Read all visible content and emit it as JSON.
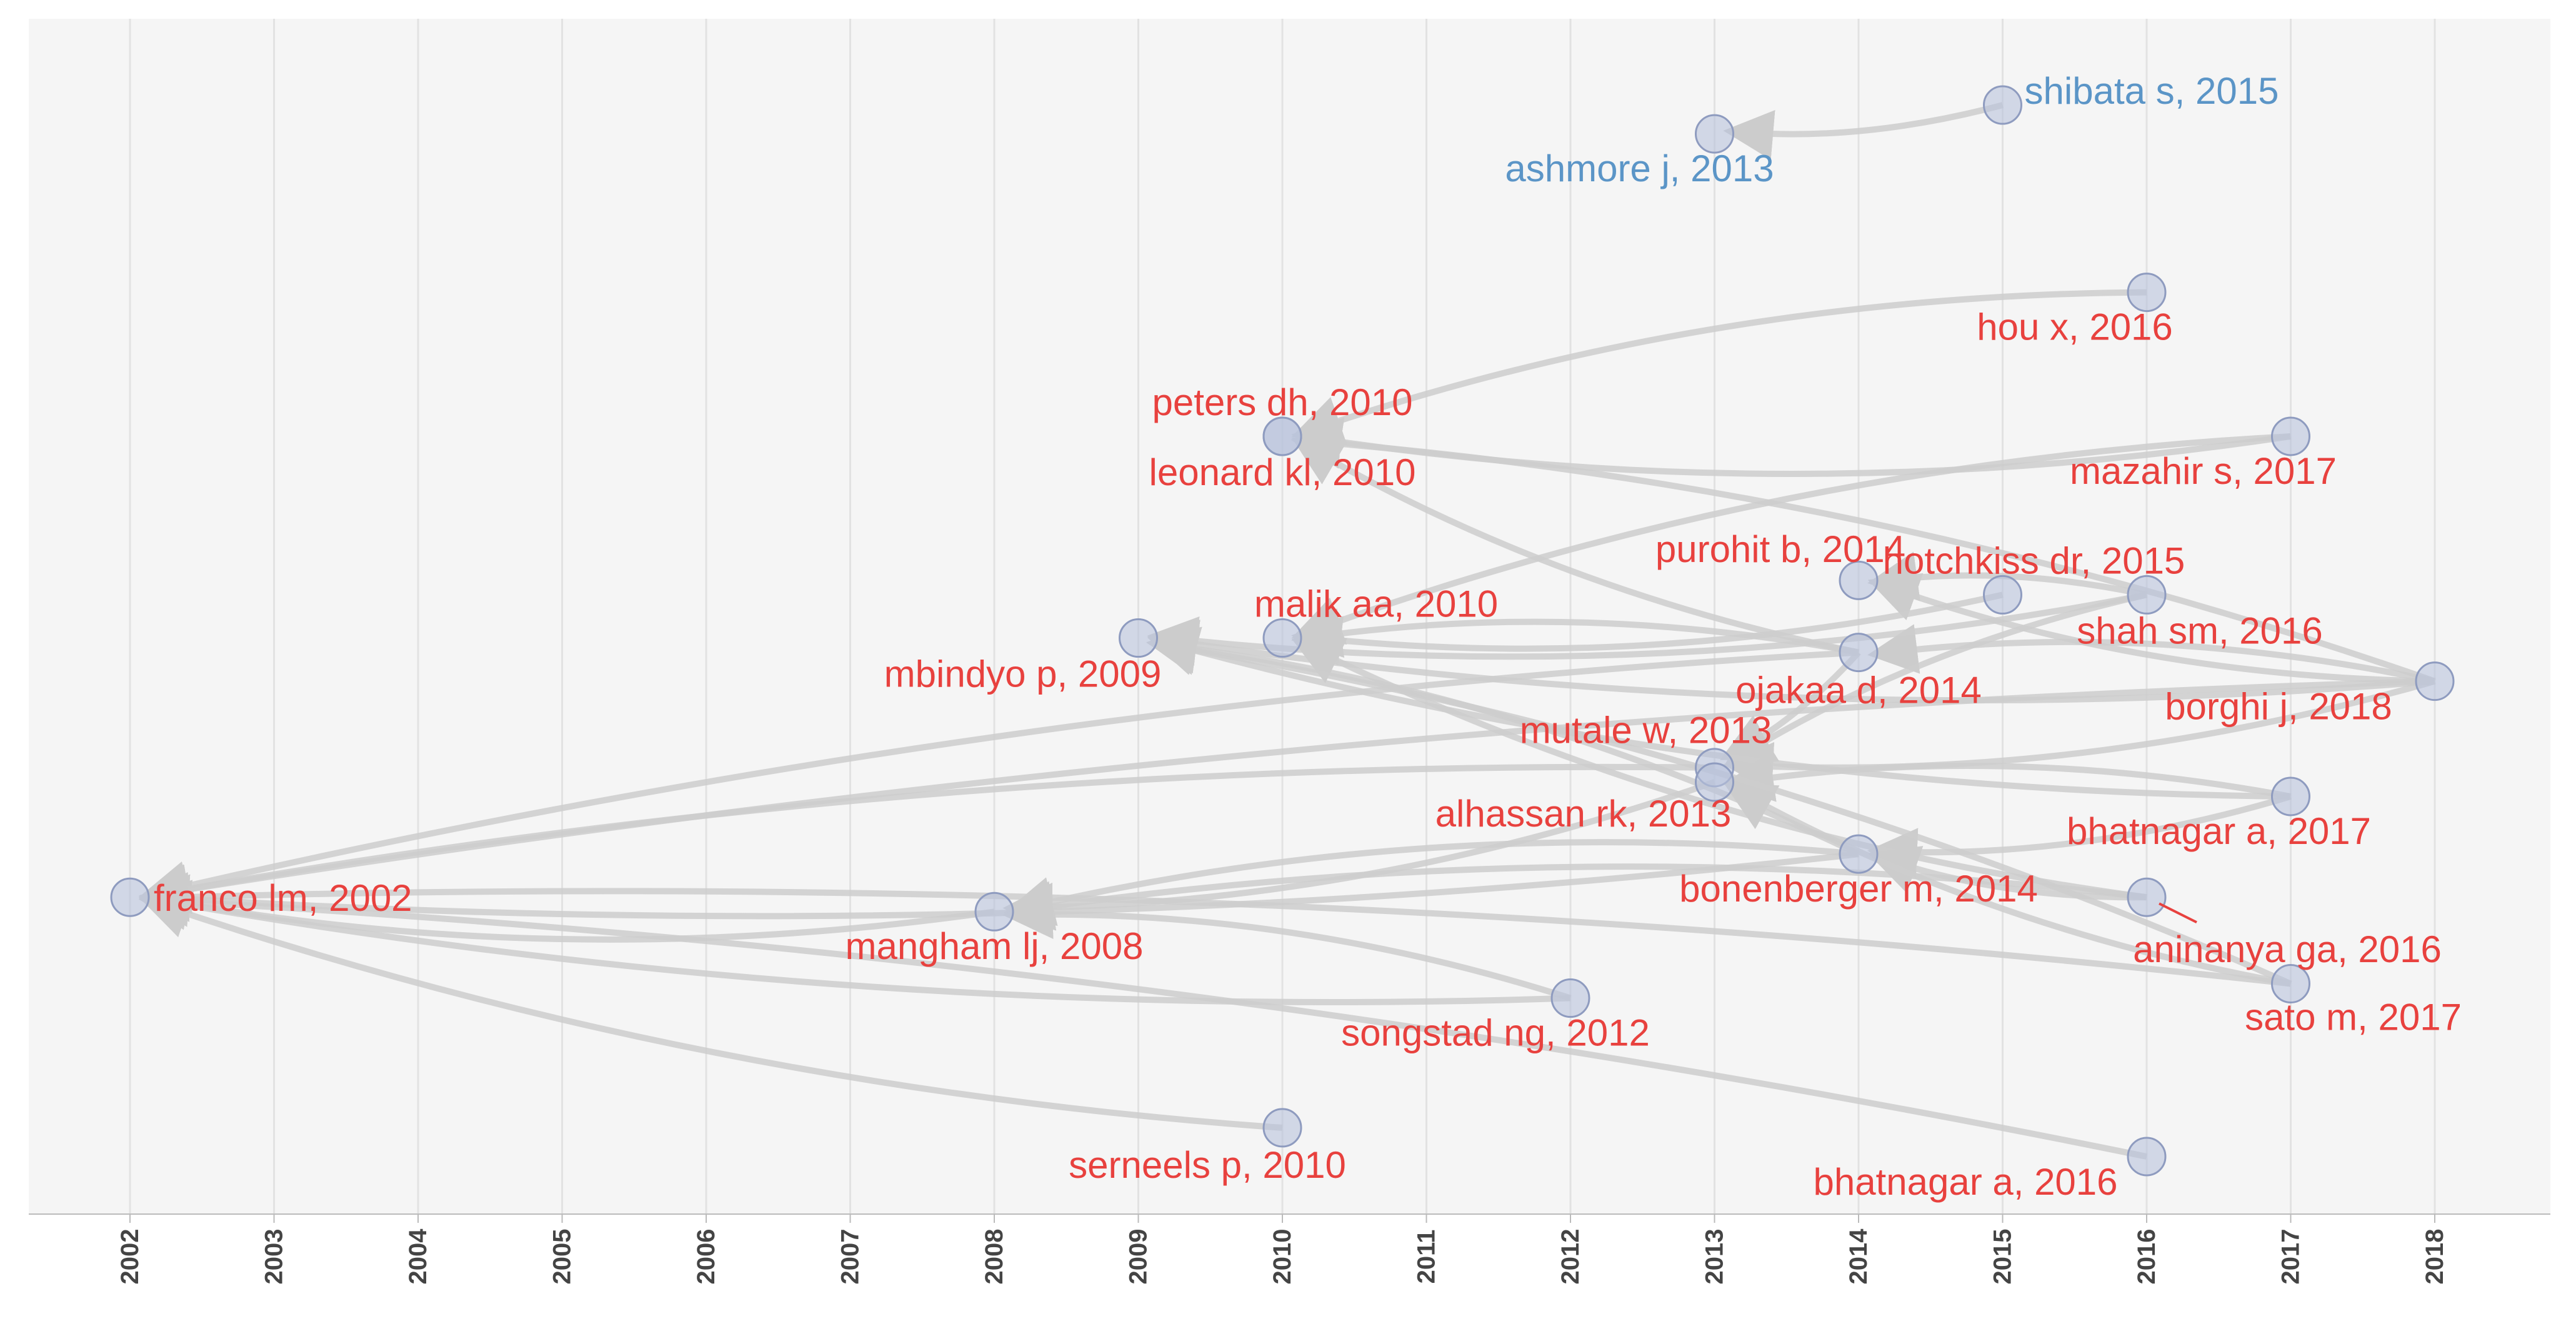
{
  "chart_data": {
    "type": "network",
    "x_axis": {
      "min": 2002,
      "max": 2018,
      "tick_labels": [
        "2002",
        "2003",
        "2004",
        "2005",
        "2006",
        "2007",
        "2008",
        "2009",
        "2010",
        "2011",
        "2012",
        "2013",
        "2014",
        "2015",
        "2016",
        "2017",
        "2018"
      ]
    },
    "nodes": [
      {
        "id": "franco_2002",
        "label": "franco lm, 2002",
        "year": 2002,
        "row": 0.56,
        "group": "red"
      },
      {
        "id": "mangham_2008",
        "label": "mangham lj, 2008",
        "year": 2008,
        "row": 0.57,
        "group": "red"
      },
      {
        "id": "mbindyo_2009",
        "label": "mbindyo p, 2009",
        "year": 2009,
        "row": 0.38,
        "group": "red"
      },
      {
        "id": "peters_2010",
        "label": "peters dh, 2010",
        "year": 2010,
        "row": 0.24,
        "group": "red"
      },
      {
        "id": "leonard_2010",
        "label": "leonard kl, 2010",
        "year": 2010,
        "row": 0.24,
        "group": "red"
      },
      {
        "id": "malik_2010",
        "label": "malik aa, 2010",
        "year": 2010,
        "row": 0.38,
        "group": "red"
      },
      {
        "id": "serneels_2010",
        "label": "serneels p, 2010",
        "year": 2010,
        "row": 0.72,
        "group": "red"
      },
      {
        "id": "songstad_2012",
        "label": "songstad ng, 2012",
        "year": 2012,
        "row": 0.63,
        "group": "red"
      },
      {
        "id": "ashmore_2013",
        "label": "ashmore j, 2013",
        "year": 2013,
        "row": 0.03,
        "group": "blue"
      },
      {
        "id": "mutale_2013",
        "label": "mutale w, 2013",
        "year": 2013,
        "row": 0.47,
        "group": "red"
      },
      {
        "id": "alhassan_2013",
        "label": "alhassan rk, 2013",
        "year": 2013,
        "row": 0.48,
        "group": "red"
      },
      {
        "id": "purohit_2014",
        "label": "purohit b, 2014",
        "year": 2014,
        "row": 0.34,
        "group": "red"
      },
      {
        "id": "ojakaa_2014",
        "label": "ojakaa d, 2014",
        "year": 2014,
        "row": 0.39,
        "group": "red"
      },
      {
        "id": "bonenberger_2014",
        "label": "bonenberger m, 2014",
        "year": 2014,
        "row": 0.53,
        "group": "red"
      },
      {
        "id": "shibata_2015",
        "label": "shibata s, 2015",
        "year": 2015,
        "row": 0.01,
        "group": "blue"
      },
      {
        "id": "hotchkiss_2015",
        "label": "hotchkiss dr, 2015",
        "year": 2015,
        "row": 0.35,
        "group": "red"
      },
      {
        "id": "hou_2016",
        "label": "hou x, 2016",
        "year": 2016,
        "row": 0.14,
        "group": "red"
      },
      {
        "id": "shah_2016",
        "label": "shah sm, 2016",
        "year": 2016,
        "row": 0.35,
        "group": "red"
      },
      {
        "id": "aninanya_2016",
        "label": "aninanya ga, 2016",
        "year": 2016,
        "row": 0.56,
        "group": "red"
      },
      {
        "id": "bhatnagar_2016",
        "label": "bhatnagar a, 2016",
        "year": 2016,
        "row": 0.74,
        "group": "red"
      },
      {
        "id": "mazahir_2017",
        "label": "mazahir s, 2017",
        "year": 2017,
        "row": 0.24,
        "group": "red"
      },
      {
        "id": "bhatnagar_2017",
        "label": "bhatnagar a, 2017",
        "year": 2017,
        "row": 0.49,
        "group": "red"
      },
      {
        "id": "sato_2017",
        "label": "sato m, 2017",
        "year": 2017,
        "row": 0.62,
        "group": "red"
      },
      {
        "id": "borghi_2018",
        "label": "borghi j, 2018",
        "year": 2018,
        "row": 0.41,
        "group": "red"
      }
    ],
    "edges": [
      {
        "from": "shibata_2015",
        "to": "ashmore_2013"
      },
      {
        "from": "hou_2016",
        "to": "peters_2010"
      },
      {
        "from": "mazahir_2017",
        "to": "peters_2010"
      },
      {
        "from": "mazahir_2017",
        "to": "malik_2010"
      },
      {
        "from": "ojakaa_2014",
        "to": "leonard_2010"
      },
      {
        "from": "borghi_2018",
        "to": "leonard_2010"
      },
      {
        "from": "borghi_2018",
        "to": "purohit_2014"
      },
      {
        "from": "borghi_2018",
        "to": "ojakaa_2014"
      },
      {
        "from": "borghi_2018",
        "to": "mbindyo_2009"
      },
      {
        "from": "borghi_2018",
        "to": "franco_2002"
      },
      {
        "from": "borghi_2018",
        "to": "mutale_2013"
      },
      {
        "from": "shah_2016",
        "to": "purohit_2014"
      },
      {
        "from": "shah_2016",
        "to": "mbindyo_2009"
      },
      {
        "from": "shah_2016",
        "to": "mutale_2013"
      },
      {
        "from": "hotchkiss_2015",
        "to": "malik_2010"
      },
      {
        "from": "ojakaa_2014",
        "to": "malik_2010"
      },
      {
        "from": "ojakaa_2014",
        "to": "mutale_2013"
      },
      {
        "from": "ojakaa_2014",
        "to": "franco_2002"
      },
      {
        "from": "bhatnagar_2017",
        "to": "mbindyo_2009"
      },
      {
        "from": "bhatnagar_2017",
        "to": "alhassan_2013"
      },
      {
        "from": "bhatnagar_2017",
        "to": "bonenberger_2014"
      },
      {
        "from": "bonenberger_2014",
        "to": "mbindyo_2009"
      },
      {
        "from": "bonenberger_2014",
        "to": "franco_2002"
      },
      {
        "from": "bonenberger_2014",
        "to": "mangham_2008"
      },
      {
        "from": "aninanya_2016",
        "to": "malik_2010"
      },
      {
        "from": "aninanya_2016",
        "to": "mangham_2008"
      },
      {
        "from": "aninanya_2016",
        "to": "bonenberger_2014"
      },
      {
        "from": "sato_2017",
        "to": "franco_2002"
      },
      {
        "from": "sato_2017",
        "to": "alhassan_2013"
      },
      {
        "from": "sato_2017",
        "to": "mbindyo_2009"
      },
      {
        "from": "songstad_2012",
        "to": "franco_2002"
      },
      {
        "from": "songstad_2012",
        "to": "mangham_2008"
      },
      {
        "from": "serneels_2010",
        "to": "franco_2002"
      },
      {
        "from": "bhatnagar_2016",
        "to": "franco_2002"
      },
      {
        "from": "mangham_2008",
        "to": "franco_2002"
      },
      {
        "from": "mutale_2013",
        "to": "franco_2002"
      },
      {
        "from": "alhassan_2013",
        "to": "mangham_2008"
      }
    ],
    "colors": {
      "background": "#f5f5f5",
      "grid": "#e2e2e2",
      "edge": "#cccccc",
      "node_fill": "#b9c3dc",
      "node_stroke": "#8e9bbf",
      "red_label": "#e8413e",
      "blue_label": "#5b95c7",
      "axis_text": "#444444"
    }
  }
}
